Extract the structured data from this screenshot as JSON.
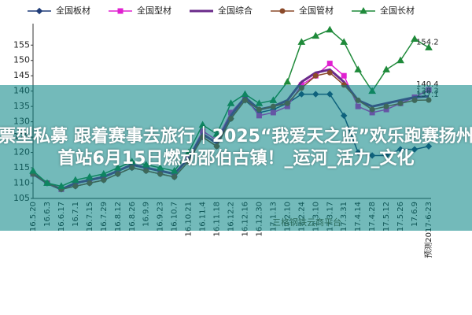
{
  "chart_data": {
    "type": "line",
    "categories": [
      "16.5.20",
      "16.6.3",
      "16.6.17",
      "16.7.1",
      "16.7.15",
      "16.7.29",
      "16.8.12",
      "16.8.26",
      "16.9.9",
      "16.9.23",
      "16.10.7",
      "16.10.21",
      "16.11.4",
      "16.11.18",
      "16.12.2",
      "16.12.16",
      "16.12.30",
      "17.1.13",
      "17.2.10",
      "17.2.24",
      "17.3.10",
      "17.3.17",
      "17.3.31",
      "17.4.14",
      "17.4.28",
      "17.5.12",
      "17.5.26",
      "17.6.9",
      "预测2017-6-23"
    ],
    "series": [
      {
        "name": "全国板材",
        "color": "#1f3c78",
        "marker": "diamond",
        "end_label": false,
        "values": [
          113,
          110,
          108,
          109,
          110,
          111,
          113,
          115,
          114,
          113,
          112,
          117,
          125,
          122,
          131,
          137,
          133,
          134,
          136,
          139,
          139,
          139,
          132,
          120,
          119,
          119,
          121,
          121,
          122
        ]
      },
      {
        "name": "全国型材",
        "color": "#e020d0",
        "marker": "square",
        "end_label": true,
        "values": [
          113,
          110,
          108,
          110,
          111,
          112,
          114,
          116,
          115,
          114,
          113,
          118,
          127,
          124,
          133,
          138,
          132,
          133,
          135,
          142,
          145,
          149,
          145,
          135,
          133,
          134,
          136,
          138,
          140.4
        ]
      },
      {
        "name": "全国综合",
        "color": "#6a2a8a",
        "marker": "none",
        "end_label": true,
        "values": [
          113,
          110,
          108,
          110,
          111,
          112,
          114,
          116,
          115,
          114,
          113,
          118,
          126,
          123,
          132,
          138,
          134,
          135,
          137,
          143,
          146,
          147,
          143,
          137,
          135,
          136,
          137,
          138,
          138.3
        ]
      },
      {
        "name": "全国管材",
        "color": "#8b4a2a",
        "marker": "circle",
        "end_label": true,
        "values": [
          113,
          110,
          108,
          109,
          110,
          111,
          113,
          115,
          114,
          113,
          112,
          117,
          125,
          122,
          131,
          137,
          134,
          135,
          136,
          141,
          145,
          146,
          142,
          137,
          134,
          135,
          136,
          137,
          137.1
        ]
      },
      {
        "name": "全国长材",
        "color": "#1f8a3a",
        "marker": "triangle",
        "end_label": true,
        "values": [
          114,
          110,
          109,
          111,
          112,
          113,
          115,
          117,
          116,
          115,
          114,
          120,
          129,
          126,
          136,
          139,
          136,
          137,
          143,
          156,
          158,
          160,
          156,
          147,
          140,
          147,
          150,
          157,
          154.2
        ]
      }
    ],
    "ylim": [
      105,
      162
    ],
    "yticks": [
      105,
      110,
      115,
      120,
      125,
      130,
      135,
      140,
      145,
      150,
      155
    ],
    "grid": false
  },
  "watermark": "三格钢铁云商平台",
  "overlay": {
    "text": "股票型私募 跟着赛事去旅行｜2025“我爱天之蓝”欢乐跑赛扬州站首站6月15日燃动邵伯古镇！_运河_活力_文化"
  }
}
